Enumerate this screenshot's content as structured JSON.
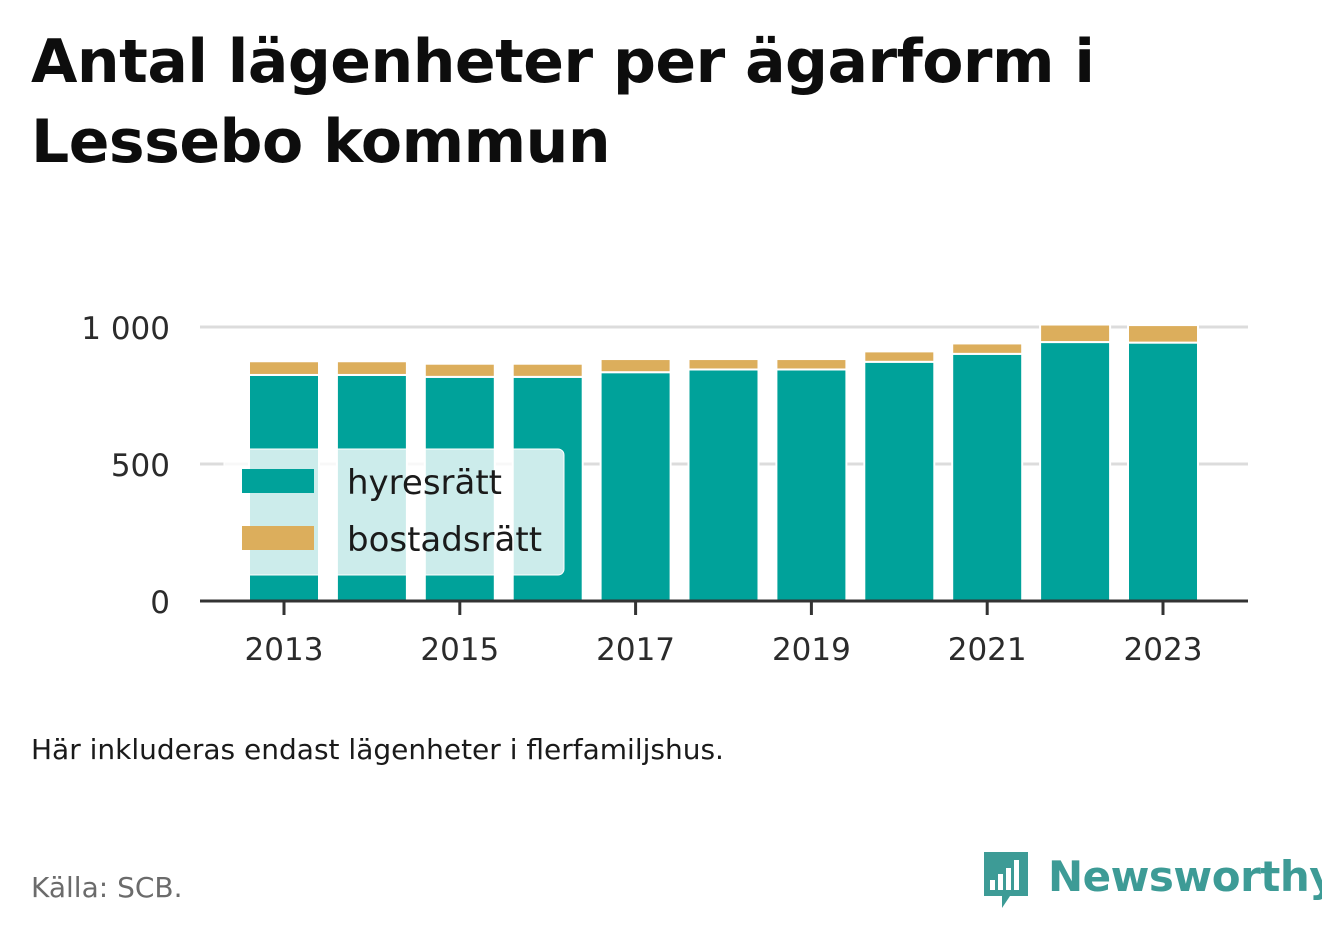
{
  "title": "Antal lägenheter per ägarform i Lessebo kommun",
  "note": "Här inkluderas endast lägenheter i flerfamiljshus.",
  "source": "Källa: SCB.",
  "brand": {
    "name": "Newsworthy",
    "icon": "newsworthy-logo-icon",
    "color": "#3d9b96"
  },
  "chart_data": {
    "type": "bar",
    "stacked": true,
    "categories": [
      "2013",
      "2014",
      "2015",
      "2016",
      "2017",
      "2018",
      "2019",
      "2020",
      "2021",
      "2022",
      "2023"
    ],
    "x_tick_labels": [
      "2013",
      "2015",
      "2017",
      "2019",
      "2021",
      "2023"
    ],
    "y_ticks": [
      0,
      500,
      1000
    ],
    "y_tick_labels": [
      "0",
      "500",
      "1 000"
    ],
    "ylim": [
      0,
      1000
    ],
    "grid": true,
    "legend_position": "left",
    "series": [
      {
        "name": "hyresrätt",
        "color": "#00a29a",
        "values": [
          825,
          825,
          818,
          818,
          835,
          845,
          845,
          873,
          902,
          945,
          943
        ]
      },
      {
        "name": "bostadsrätt",
        "color": "#dcae5c",
        "values": [
          50,
          50,
          48,
          48,
          48,
          38,
          38,
          38,
          38,
          64,
          64
        ]
      }
    ]
  }
}
